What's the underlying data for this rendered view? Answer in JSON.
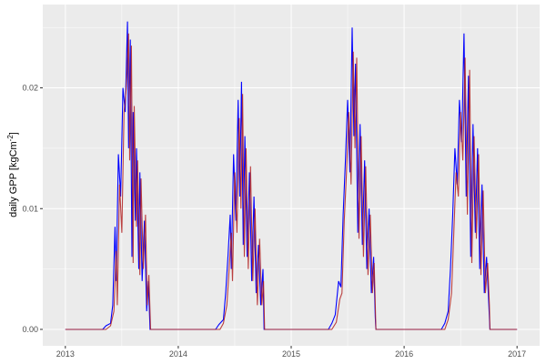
{
  "chart_data": {
    "type": "line",
    "title": "",
    "xlabel": "",
    "ylabel": "daily GPP [kgCm^-2]",
    "ylabel_base": "daily GPP [kgCm",
    "ylabel_sup": "-2",
    "ylabel_end": "]",
    "xlim": [
      2012.8,
      2017.2
    ],
    "ylim": [
      -0.00136,
      0.0269
    ],
    "x_ticks": [
      2013,
      2014,
      2015,
      2016,
      2017
    ],
    "x_tick_labels": [
      "2013",
      "2014",
      "2015",
      "2016",
      "2017"
    ],
    "y_ticks": [
      0,
      0.01,
      0.02
    ],
    "y_tick_labels": [
      "0.00",
      "0.01",
      "0.02"
    ],
    "grid": true,
    "legend": "none",
    "background": "#EBEBEB",
    "series": [
      {
        "color": "#0000FF",
        "points": [
          [
            2013.0,
            0
          ],
          [
            2013.33,
            0
          ],
          [
            2013.36,
            0.0003
          ],
          [
            2013.4,
            0.0005
          ],
          [
            2013.42,
            0.002
          ],
          [
            2013.44,
            0.0085
          ],
          [
            2013.45,
            0.004
          ],
          [
            2013.47,
            0.0145
          ],
          [
            2013.49,
            0.011
          ],
          [
            2013.51,
            0.02
          ],
          [
            2013.53,
            0.018
          ],
          [
            2013.55,
            0.0255
          ],
          [
            2013.56,
            0.015
          ],
          [
            2013.575,
            0.024
          ],
          [
            2013.59,
            0.006
          ],
          [
            2013.6,
            0.018
          ],
          [
            2013.62,
            0.009
          ],
          [
            2013.63,
            0.015
          ],
          [
            2013.65,
            0.005
          ],
          [
            2013.66,
            0.013
          ],
          [
            2013.68,
            0.004
          ],
          [
            2013.7,
            0.009
          ],
          [
            2013.72,
            0.0015
          ],
          [
            2013.735,
            0.004
          ],
          [
            2013.75,
            0
          ],
          [
            2014.33,
            0
          ],
          [
            2014.36,
            0.0004
          ],
          [
            2014.4,
            0.0008
          ],
          [
            2014.42,
            0.003
          ],
          [
            2014.44,
            0.006
          ],
          [
            2014.46,
            0.0095
          ],
          [
            2014.47,
            0.005
          ],
          [
            2014.49,
            0.0145
          ],
          [
            2014.51,
            0.009
          ],
          [
            2014.53,
            0.019
          ],
          [
            2014.545,
            0.011
          ],
          [
            2014.56,
            0.0205
          ],
          [
            2014.575,
            0.007
          ],
          [
            2014.59,
            0.016
          ],
          [
            2014.61,
            0.006
          ],
          [
            2014.63,
            0.013
          ],
          [
            2014.65,
            0.004
          ],
          [
            2014.67,
            0.011
          ],
          [
            2014.69,
            0.003
          ],
          [
            2014.71,
            0.007
          ],
          [
            2014.73,
            0.002
          ],
          [
            2014.75,
            0.005
          ],
          [
            2014.76,
            0
          ],
          [
            2015.33,
            0
          ],
          [
            2015.36,
            0.0005
          ],
          [
            2015.39,
            0.0012
          ],
          [
            2015.42,
            0.004
          ],
          [
            2015.44,
            0.0035
          ],
          [
            2015.46,
            0.0095
          ],
          [
            2015.48,
            0.014
          ],
          [
            2015.5,
            0.019
          ],
          [
            2015.52,
            0.013
          ],
          [
            2015.54,
            0.025
          ],
          [
            2015.555,
            0.016
          ],
          [
            2015.57,
            0.022
          ],
          [
            2015.59,
            0.008
          ],
          [
            2015.61,
            0.017
          ],
          [
            2015.63,
            0.007
          ],
          [
            2015.65,
            0.014
          ],
          [
            2015.67,
            0.005
          ],
          [
            2015.69,
            0.01
          ],
          [
            2015.71,
            0.003
          ],
          [
            2015.73,
            0.006
          ],
          [
            2015.745,
            0.001
          ],
          [
            2015.75,
            0
          ],
          [
            2016.33,
            0
          ],
          [
            2016.36,
            0.0005
          ],
          [
            2016.39,
            0.0015
          ],
          [
            2016.41,
            0.005
          ],
          [
            2016.43,
            0.0095
          ],
          [
            2016.45,
            0.015
          ],
          [
            2016.47,
            0.012
          ],
          [
            2016.49,
            0.019
          ],
          [
            2016.51,
            0.0155
          ],
          [
            2016.53,
            0.0245
          ],
          [
            2016.55,
            0.011
          ],
          [
            2016.57,
            0.021
          ],
          [
            2016.59,
            0.006
          ],
          [
            2016.61,
            0.017
          ],
          [
            2016.63,
            0.008
          ],
          [
            2016.65,
            0.015
          ],
          [
            2016.67,
            0.005
          ],
          [
            2016.69,
            0.012
          ],
          [
            2016.71,
            0.003
          ],
          [
            2016.73,
            0.006
          ],
          [
            2016.75,
            0.002
          ],
          [
            2016.76,
            0
          ],
          [
            2017.0,
            0
          ]
        ]
      },
      {
        "color": "#B22222",
        "points": [
          [
            2013.0,
            0
          ],
          [
            2013.36,
            0
          ],
          [
            2013.4,
            0.0003
          ],
          [
            2013.43,
            0.0015
          ],
          [
            2013.45,
            0.0065
          ],
          [
            2013.46,
            0.002
          ],
          [
            2013.48,
            0.012
          ],
          [
            2013.5,
            0.008
          ],
          [
            2013.52,
            0.018
          ],
          [
            2013.54,
            0.02
          ],
          [
            2013.56,
            0.0245
          ],
          [
            2013.57,
            0.014
          ],
          [
            2013.585,
            0.0235
          ],
          [
            2013.6,
            0.0055
          ],
          [
            2013.61,
            0.0185
          ],
          [
            2013.63,
            0.0085
          ],
          [
            2013.64,
            0.014
          ],
          [
            2013.66,
            0.0045
          ],
          [
            2013.67,
            0.0125
          ],
          [
            2013.69,
            0.005
          ],
          [
            2013.71,
            0.0095
          ],
          [
            2013.725,
            0.002
          ],
          [
            2013.74,
            0.0045
          ],
          [
            2013.755,
            0
          ],
          [
            2014.37,
            0
          ],
          [
            2014.4,
            0.0005
          ],
          [
            2014.43,
            0.002
          ],
          [
            2014.45,
            0.005
          ],
          [
            2014.47,
            0.008
          ],
          [
            2014.48,
            0.004
          ],
          [
            2014.5,
            0.013
          ],
          [
            2014.52,
            0.008
          ],
          [
            2014.54,
            0.0175
          ],
          [
            2014.555,
            0.01
          ],
          [
            2014.57,
            0.0195
          ],
          [
            2014.585,
            0.006
          ],
          [
            2014.6,
            0.015
          ],
          [
            2014.62,
            0.005
          ],
          [
            2014.64,
            0.0135
          ],
          [
            2014.66,
            0.004
          ],
          [
            2014.68,
            0.01
          ],
          [
            2014.7,
            0.002
          ],
          [
            2014.72,
            0.0075
          ],
          [
            2014.74,
            0.002
          ],
          [
            2014.755,
            0.004
          ],
          [
            2014.765,
            0
          ],
          [
            2015.36,
            0
          ],
          [
            2015.4,
            0.0006
          ],
          [
            2015.43,
            0.0025
          ],
          [
            2015.45,
            0.003
          ],
          [
            2015.47,
            0.009
          ],
          [
            2015.49,
            0.013
          ],
          [
            2015.51,
            0.018
          ],
          [
            2015.53,
            0.012
          ],
          [
            2015.55,
            0.023
          ],
          [
            2015.565,
            0.015
          ],
          [
            2015.58,
            0.0225
          ],
          [
            2015.6,
            0.0075
          ],
          [
            2015.62,
            0.016
          ],
          [
            2015.64,
            0.006
          ],
          [
            2015.66,
            0.0135
          ],
          [
            2015.68,
            0.0045
          ],
          [
            2015.7,
            0.0095
          ],
          [
            2015.72,
            0.003
          ],
          [
            2015.735,
            0.0055
          ],
          [
            2015.75,
            0
          ],
          [
            2016.36,
            0
          ],
          [
            2016.39,
            0.0008
          ],
          [
            2016.42,
            0.003
          ],
          [
            2016.44,
            0.008
          ],
          [
            2016.46,
            0.013
          ],
          [
            2016.48,
            0.011
          ],
          [
            2016.5,
            0.018
          ],
          [
            2016.52,
            0.014
          ],
          [
            2016.54,
            0.0225
          ],
          [
            2016.56,
            0.0095
          ],
          [
            2016.58,
            0.0215
          ],
          [
            2016.6,
            0.0055
          ],
          [
            2016.62,
            0.016
          ],
          [
            2016.64,
            0.0075
          ],
          [
            2016.66,
            0.0145
          ],
          [
            2016.68,
            0.0045
          ],
          [
            2016.7,
            0.0115
          ],
          [
            2016.72,
            0.003
          ],
          [
            2016.74,
            0.0055
          ],
          [
            2016.755,
            0.002
          ],
          [
            2016.76,
            0
          ],
          [
            2017.0,
            0
          ]
        ]
      }
    ]
  }
}
